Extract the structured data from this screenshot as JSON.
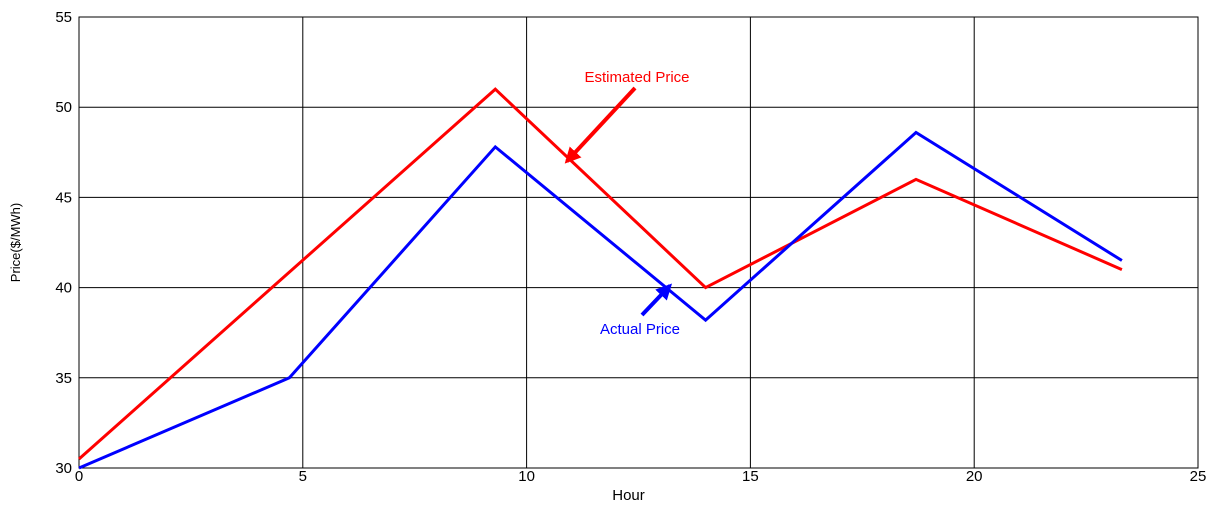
{
  "chart_data": {
    "type": "line",
    "xlabel": "Hour",
    "ylabel": "Price($/MWh)",
    "xlim": [
      0,
      25
    ],
    "ylim": [
      30,
      55
    ],
    "xticks": [
      0,
      5,
      10,
      15,
      20,
      25
    ],
    "yticks": [
      30,
      35,
      40,
      45,
      50,
      55
    ],
    "grid": {
      "vertical": true,
      "horizontal": true
    },
    "series": [
      {
        "key": "estimated",
        "color": "#ff0000",
        "x": [
          0,
          9.3,
          14,
          18.7,
          23.3
        ],
        "y": [
          30.5,
          51.0,
          40.0,
          46.0,
          41.0
        ]
      },
      {
        "key": "actual",
        "color": "#0000ff",
        "x": [
          0,
          4.7,
          9.3,
          14,
          18.7,
          23.3
        ],
        "y": [
          30.0,
          35.0,
          47.8,
          38.2,
          48.6,
          41.5
        ]
      }
    ],
    "annotations": [
      {
        "key": "estimated",
        "text": "Estimated Price",
        "color": "#ff0000",
        "arrow_tip": {
          "x": 10.9,
          "y": 47.0
        }
      },
      {
        "key": "actual",
        "text": "Actual Price",
        "color": "#0000ff",
        "arrow_tip": {
          "x": 13.2,
          "y": 40.1
        }
      }
    ]
  }
}
